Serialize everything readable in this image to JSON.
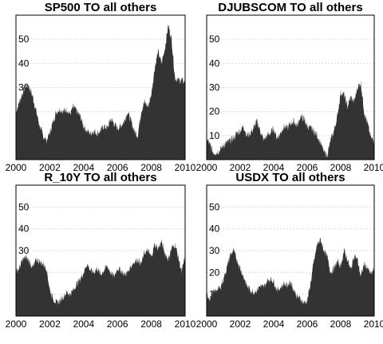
{
  "colors": {
    "area": "#333333",
    "grid": "#dcdcdc",
    "frame": "#000000"
  },
  "chart_data": [
    {
      "type": "area",
      "title": "SP500 TO all others",
      "xlabel": "",
      "ylabel": "",
      "xlim": [
        2000,
        2010
      ],
      "ylim": [
        0,
        60
      ],
      "xticks": [
        "2000",
        "2002",
        "2004",
        "2006",
        "2008",
        "2010"
      ],
      "yticks": [
        "10",
        "20",
        "30",
        "40",
        "50"
      ],
      "grid": true,
      "x": [
        2000.0,
        2000.2,
        2000.4,
        2000.6,
        2000.8,
        2001.0,
        2001.2,
        2001.4,
        2001.6,
        2001.8,
        2002.0,
        2002.2,
        2002.4,
        2002.6,
        2002.8,
        2003.0,
        2003.2,
        2003.4,
        2003.6,
        2003.8,
        2004.0,
        2004.2,
        2004.4,
        2004.6,
        2004.8,
        2005.0,
        2005.2,
        2005.4,
        2005.6,
        2005.8,
        2006.0,
        2006.2,
        2006.4,
        2006.6,
        2006.8,
        2007.0,
        2007.2,
        2007.4,
        2007.6,
        2007.8,
        2008.0,
        2008.2,
        2008.4,
        2008.6,
        2008.8,
        2009.0,
        2009.2,
        2009.4,
        2009.6,
        2009.8,
        2010.0,
        2010.1
      ],
      "values": [
        20,
        24,
        28,
        31,
        30,
        26,
        20,
        14,
        10,
        8,
        11,
        16,
        20,
        21,
        20,
        21,
        19,
        22,
        20,
        18,
        14,
        12,
        11,
        12,
        11,
        12,
        14,
        13,
        17,
        15,
        13,
        14,
        16,
        20,
        16,
        12,
        10,
        20,
        24,
        22,
        27,
        38,
        45,
        40,
        46,
        56,
        50,
        34,
        33,
        33,
        32,
        34
      ]
    },
    {
      "type": "area",
      "title": "DJUBSCOM TO all others",
      "xlabel": "",
      "ylabel": "",
      "xlim": [
        2000,
        2010
      ],
      "ylim": [
        0,
        60
      ],
      "xticks": [
        "2000",
        "2002",
        "2004",
        "2006",
        "2008",
        "2010"
      ],
      "yticks": [
        "10",
        "20",
        "30",
        "40",
        "50"
      ],
      "grid": true,
      "x": [
        2000.0,
        2000.2,
        2000.4,
        2000.6,
        2000.8,
        2001.0,
        2001.2,
        2001.4,
        2001.6,
        2001.8,
        2002.0,
        2002.2,
        2002.4,
        2002.6,
        2002.8,
        2003.0,
        2003.2,
        2003.4,
        2003.6,
        2003.8,
        2004.0,
        2004.2,
        2004.4,
        2004.6,
        2004.8,
        2005.0,
        2005.2,
        2005.4,
        2005.6,
        2005.8,
        2006.0,
        2006.2,
        2006.4,
        2006.6,
        2006.8,
        2007.0,
        2007.2,
        2007.4,
        2007.6,
        2007.8,
        2008.0,
        2008.2,
        2008.4,
        2008.6,
        2008.8,
        2009.0,
        2009.2,
        2009.4,
        2009.6,
        2009.8,
        2010.0,
        2010.1
      ],
      "values": [
        9,
        6,
        3,
        3,
        4,
        6,
        7,
        8,
        9,
        11,
        12,
        14,
        10,
        11,
        13,
        16,
        12,
        8,
        10,
        11,
        13,
        9,
        11,
        14,
        13,
        15,
        16,
        14,
        18,
        17,
        14,
        13,
        12,
        10,
        7,
        3,
        2,
        8,
        12,
        18,
        28,
        27,
        22,
        26,
        24,
        30,
        32,
        20,
        15,
        9,
        8,
        9
      ]
    },
    {
      "type": "area",
      "title": "R_10Y TO all others",
      "xlabel": "",
      "ylabel": "",
      "xlim": [
        2000,
        2010
      ],
      "ylim": [
        0,
        60
      ],
      "xticks": [
        "2000",
        "2002",
        "2004",
        "2006",
        "2008",
        "2010"
      ],
      "yticks": [
        "10",
        "20",
        "30",
        "40",
        "50"
      ],
      "grid": true,
      "x": [
        2000.0,
        2000.2,
        2000.4,
        2000.6,
        2000.8,
        2001.0,
        2001.2,
        2001.4,
        2001.6,
        2001.8,
        2002.0,
        2002.2,
        2002.4,
        2002.6,
        2002.8,
        2003.0,
        2003.2,
        2003.4,
        2003.6,
        2003.8,
        2004.0,
        2004.2,
        2004.4,
        2004.6,
        2004.8,
        2005.0,
        2005.2,
        2005.4,
        2005.6,
        2005.8,
        2006.0,
        2006.2,
        2006.4,
        2006.6,
        2006.8,
        2007.0,
        2007.2,
        2007.4,
        2007.6,
        2007.8,
        2008.0,
        2008.2,
        2008.4,
        2008.6,
        2008.8,
        2009.0,
        2009.2,
        2009.4,
        2009.6,
        2009.8,
        2010.0,
        2010.1
      ],
      "values": [
        20,
        22,
        26,
        27,
        25,
        22,
        26,
        25,
        24,
        22,
        12,
        8,
        6,
        7,
        9,
        11,
        10,
        12,
        15,
        17,
        20,
        24,
        21,
        20,
        22,
        19,
        21,
        23,
        20,
        18,
        22,
        21,
        19,
        20,
        23,
        25,
        26,
        24,
        29,
        30,
        27,
        33,
        31,
        34,
        29,
        26,
        31,
        33,
        27,
        20,
        28,
        26
      ]
    },
    {
      "type": "area",
      "title": "USDX TO all others",
      "xlabel": "",
      "ylabel": "",
      "xlim": [
        2000,
        2010
      ],
      "ylim": [
        0,
        60
      ],
      "xticks": [
        "2000",
        "2002",
        "2004",
        "2006",
        "2008",
        "2010"
      ],
      "yticks": [
        "10",
        "20",
        "30",
        "40",
        "50"
      ],
      "grid": true,
      "x": [
        2000.0,
        2000.2,
        2000.4,
        2000.6,
        2000.8,
        2001.0,
        2001.2,
        2001.4,
        2001.6,
        2001.8,
        2002.0,
        2002.2,
        2002.4,
        2002.6,
        2002.8,
        2003.0,
        2003.2,
        2003.4,
        2003.6,
        2003.8,
        2004.0,
        2004.2,
        2004.4,
        2004.6,
        2004.8,
        2005.0,
        2005.2,
        2005.4,
        2005.6,
        2005.8,
        2006.0,
        2006.2,
        2006.4,
        2006.6,
        2006.8,
        2007.0,
        2007.2,
        2007.4,
        2007.6,
        2007.8,
        2008.0,
        2008.2,
        2008.4,
        2008.6,
        2008.8,
        2009.0,
        2009.2,
        2009.4,
        2009.6,
        2009.8,
        2010.0,
        2010.1
      ],
      "values": [
        10,
        8,
        11,
        12,
        13,
        17,
        22,
        28,
        30,
        26,
        22,
        18,
        14,
        12,
        11,
        12,
        14,
        13,
        16,
        17,
        16,
        12,
        13,
        15,
        14,
        16,
        12,
        9,
        8,
        6,
        7,
        15,
        25,
        33,
        35,
        30,
        27,
        20,
        22,
        25,
        23,
        30,
        26,
        21,
        28,
        26,
        18,
        24,
        22,
        19,
        22,
        18
      ]
    }
  ]
}
